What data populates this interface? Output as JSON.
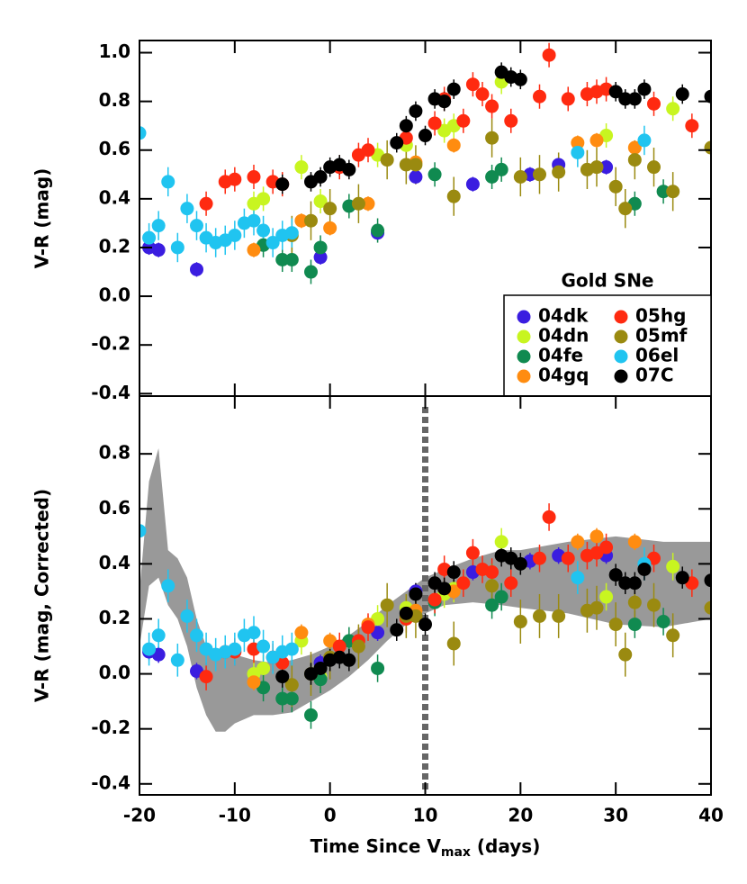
{
  "chart_data": [
    {
      "type": "scatter",
      "ylabel": "V-R (mag)",
      "xlim": [
        -20,
        40
      ],
      "xticks": [
        -20,
        -10,
        0,
        10,
        20,
        30,
        40
      ],
      "ylim": [
        -0.41,
        1.05
      ],
      "yticks": [
        -0.4,
        -0.2,
        {
          "value": 0.0,
          "label": "0.0"
        },
        0.2,
        0.4,
        0.6,
        0.8,
        {
          "value": 1.0,
          "label": "1.0"
        }
      ],
      "legend_title": "Gold SNe",
      "legend": "lower right",
      "series": [
        {
          "name": "04dk",
          "color": "#3a1de0",
          "error": 0.03,
          "x": [
            -19,
            -18,
            -14,
            -1,
            5,
            9,
            15,
            21,
            24,
            29
          ],
          "values": [
            0.2,
            0.19,
            0.11,
            0.16,
            0.26,
            0.49,
            0.46,
            0.5,
            0.54,
            0.53
          ]
        },
        {
          "name": "04dn",
          "color": "#c8f520",
          "error": 0.05,
          "x": [
            -8,
            -7,
            -3,
            -1,
            5,
            8,
            12,
            13,
            18,
            29,
            36
          ],
          "values": [
            0.38,
            0.4,
            0.53,
            0.39,
            0.58,
            0.62,
            0.68,
            0.7,
            0.88,
            0.66,
            0.77
          ]
        },
        {
          "name": "04fe",
          "color": "#108a50",
          "error": 0.05,
          "x": [
            -7,
            -5,
            -4,
            -2,
            -1,
            2,
            5,
            11,
            17,
            18,
            32,
            35
          ],
          "values": [
            0.21,
            0.15,
            0.15,
            0.1,
            0.2,
            0.37,
            0.27,
            0.5,
            0.49,
            0.52,
            0.38,
            0.43
          ]
        },
        {
          "name": "04gq",
          "color": "#ff8c10",
          "error": 0.03,
          "x": [
            -8,
            -3,
            0,
            4,
            9,
            13,
            26,
            28,
            32
          ],
          "values": [
            0.19,
            0.31,
            0.28,
            0.38,
            0.55,
            0.62,
            0.63,
            0.64,
            0.61
          ]
        },
        {
          "name": "05hg",
          "color": "#ff2a10",
          "error": 0.05,
          "x": [
            -13,
            -11,
            -10,
            -8,
            -6,
            -5,
            1,
            3,
            4,
            8,
            11,
            12,
            14,
            15,
            16,
            17,
            19,
            22,
            23,
            25,
            27,
            28,
            29,
            34,
            38
          ],
          "values": [
            0.38,
            0.47,
            0.48,
            0.49,
            0.47,
            0.46,
            0.53,
            0.58,
            0.6,
            0.65,
            0.71,
            0.81,
            0.72,
            0.87,
            0.83,
            0.78,
            0.72,
            0.82,
            0.99,
            0.81,
            0.83,
            0.84,
            0.85,
            0.79,
            0.7
          ]
        },
        {
          "name": "05mf",
          "color": "#9a8a10",
          "error": 0.08,
          "x": [
            -4,
            -2,
            0,
            3,
            6,
            8,
            9,
            13,
            17,
            20,
            22,
            24,
            27,
            28,
            30,
            31,
            32,
            34,
            36,
            40
          ],
          "values": [
            0.25,
            0.31,
            0.36,
            0.38,
            0.56,
            0.54,
            0.54,
            0.41,
            0.65,
            0.49,
            0.5,
            0.51,
            0.52,
            0.53,
            0.45,
            0.36,
            0.56,
            0.53,
            0.43,
            0.61
          ]
        },
        {
          "name": "06el",
          "color": "#20c4f0",
          "error": 0.06,
          "x": [
            -20,
            -19,
            -18,
            -17,
            -16,
            -15,
            -14,
            -13,
            -12,
            -11,
            -10,
            -9,
            -8,
            -7,
            -6,
            -5,
            -4,
            26,
            33
          ],
          "values": [
            0.67,
            0.24,
            0.29,
            0.47,
            0.2,
            0.36,
            0.29,
            0.24,
            0.22,
            0.23,
            0.25,
            0.3,
            0.31,
            0.27,
            0.22,
            0.25,
            0.26,
            0.59,
            0.64
          ]
        },
        {
          "name": "07C",
          "color": "#000000",
          "error": 0.04,
          "x": [
            -5,
            -2,
            -1,
            0,
            1,
            2,
            7,
            8,
            9,
            10,
            11,
            12,
            13,
            18,
            19,
            20,
            30,
            31,
            32,
            33,
            37,
            40
          ],
          "values": [
            0.46,
            0.47,
            0.49,
            0.53,
            0.54,
            0.52,
            0.63,
            0.7,
            0.76,
            0.66,
            0.81,
            0.8,
            0.85,
            0.92,
            0.9,
            0.89,
            0.84,
            0.81,
            0.81,
            0.85,
            0.83,
            0.82
          ]
        }
      ]
    },
    {
      "type": "scatter",
      "ylabel": "V-R (mag, Corrected)",
      "xlabel": [
        "Time Since V",
        "max",
        " (days)"
      ],
      "xlim": [
        -20,
        40
      ],
      "xticks": [
        -20,
        -10,
        0,
        10,
        20,
        30,
        40
      ],
      "ylim": [
        -0.44,
        1.01
      ],
      "yticks": [
        -0.4,
        -0.2,
        {
          "value": 0.0,
          "label": "0.0"
        },
        0.2,
        0.4,
        0.6,
        0.8
      ],
      "vline": 10,
      "band": {
        "color": "#999999",
        "x": [
          -20,
          -19,
          -18,
          -17,
          -16,
          -15,
          -14,
          -13,
          -12,
          -11,
          -10,
          -8,
          -6,
          -4,
          -2,
          0,
          2,
          4,
          6,
          8,
          10,
          12,
          15,
          18,
          20,
          25,
          30,
          35,
          40
        ],
        "upper": [
          0.3,
          0.7,
          0.82,
          0.45,
          0.42,
          0.35,
          0.2,
          0.1,
          0.07,
          0.06,
          0.07,
          0.05,
          0.04,
          0.05,
          0.07,
          0.1,
          0.14,
          0.19,
          0.25,
          0.3,
          0.35,
          0.38,
          0.42,
          0.45,
          0.45,
          0.48,
          0.5,
          0.48,
          0.48
        ],
        "lower": [
          0.1,
          0.32,
          0.35,
          0.25,
          0.2,
          0.1,
          -0.05,
          -0.15,
          -0.21,
          -0.21,
          -0.18,
          -0.15,
          -0.15,
          -0.14,
          -0.1,
          -0.06,
          -0.01,
          0.05,
          0.12,
          0.18,
          0.22,
          0.25,
          0.26,
          0.25,
          0.24,
          0.22,
          0.18,
          0.17,
          0.2
        ]
      },
      "series": [
        {
          "name": "04dk",
          "color": "#3a1de0",
          "error": 0.03,
          "x": [
            -19,
            -18,
            -14,
            -1,
            5,
            9,
            15,
            21,
            24,
            29
          ],
          "values": [
            0.08,
            0.07,
            0.01,
            0.04,
            0.15,
            0.3,
            0.37,
            0.41,
            0.43,
            0.43
          ]
        },
        {
          "name": "04dn",
          "color": "#c8f520",
          "error": 0.05,
          "x": [
            -8,
            -7,
            -3,
            -1,
            5,
            8,
            12,
            13,
            18,
            29,
            36
          ],
          "values": [
            0.0,
            0.02,
            0.12,
            -0.01,
            0.2,
            0.24,
            0.29,
            0.31,
            0.48,
            0.28,
            0.39
          ]
        },
        {
          "name": "04fe",
          "color": "#108a50",
          "error": 0.05,
          "x": [
            -7,
            -5,
            -4,
            -2,
            -1,
            2,
            5,
            11,
            17,
            18,
            32,
            35
          ],
          "values": [
            -0.05,
            -0.09,
            -0.09,
            -0.15,
            -0.02,
            0.12,
            0.02,
            0.26,
            0.25,
            0.28,
            0.18,
            0.19
          ]
        },
        {
          "name": "04gq",
          "color": "#ff8c10",
          "error": 0.03,
          "x": [
            -8,
            -3,
            0,
            4,
            9,
            13,
            26,
            28,
            32
          ],
          "values": [
            -0.03,
            0.15,
            0.12,
            0.18,
            0.23,
            0.3,
            0.48,
            0.5,
            0.48
          ]
        },
        {
          "name": "05hg",
          "color": "#ff2a10",
          "error": 0.05,
          "x": [
            -13,
            -11,
            -10,
            -8,
            -6,
            -5,
            1,
            3,
            4,
            8,
            11,
            12,
            14,
            15,
            16,
            17,
            19,
            22,
            23,
            25,
            27,
            28,
            29,
            34,
            38
          ],
          "values": [
            -0.01,
            0.08,
            0.08,
            0.09,
            0.06,
            0.04,
            0.1,
            0.12,
            0.17,
            0.2,
            0.27,
            0.38,
            0.33,
            0.44,
            0.38,
            0.37,
            0.33,
            0.42,
            0.57,
            0.42,
            0.43,
            0.44,
            0.46,
            0.42,
            0.33
          ]
        },
        {
          "name": "05mf",
          "color": "#9a8a10",
          "error": 0.08,
          "x": [
            -4,
            -2,
            0,
            3,
            6,
            8,
            9,
            13,
            17,
            20,
            22,
            24,
            27,
            28,
            30,
            31,
            32,
            34,
            36,
            40
          ],
          "values": [
            -0.04,
            0.0,
            0.06,
            0.1,
            0.25,
            0.21,
            0.21,
            0.11,
            0.32,
            0.19,
            0.21,
            0.21,
            0.23,
            0.24,
            0.18,
            0.07,
            0.26,
            0.25,
            0.14,
            0.24
          ]
        },
        {
          "name": "06el",
          "color": "#20c4f0",
          "error": 0.06,
          "x": [
            -20,
            -19,
            -18,
            -17,
            -16,
            -15,
            -14,
            -13,
            -12,
            -11,
            -10,
            -9,
            -8,
            -7,
            -6,
            -5,
            -4,
            26,
            33
          ],
          "values": [
            0.52,
            0.09,
            0.14,
            0.32,
            0.05,
            0.21,
            0.14,
            0.09,
            0.07,
            0.08,
            0.09,
            0.14,
            0.15,
            0.1,
            0.06,
            0.08,
            0.09,
            0.35,
            0.4
          ]
        },
        {
          "name": "07C",
          "color": "#000000",
          "error": 0.04,
          "x": [
            -5,
            -2,
            -1,
            0,
            1,
            2,
            7,
            8,
            9,
            10,
            11,
            12,
            13,
            18,
            19,
            20,
            30,
            31,
            32,
            33,
            37,
            40
          ],
          "values": [
            -0.01,
            0.0,
            0.02,
            0.05,
            0.06,
            0.05,
            0.16,
            0.22,
            0.29,
            0.18,
            0.33,
            0.31,
            0.37,
            0.43,
            0.42,
            0.4,
            0.36,
            0.33,
            0.33,
            0.38,
            0.35,
            0.34
          ]
        }
      ]
    }
  ]
}
